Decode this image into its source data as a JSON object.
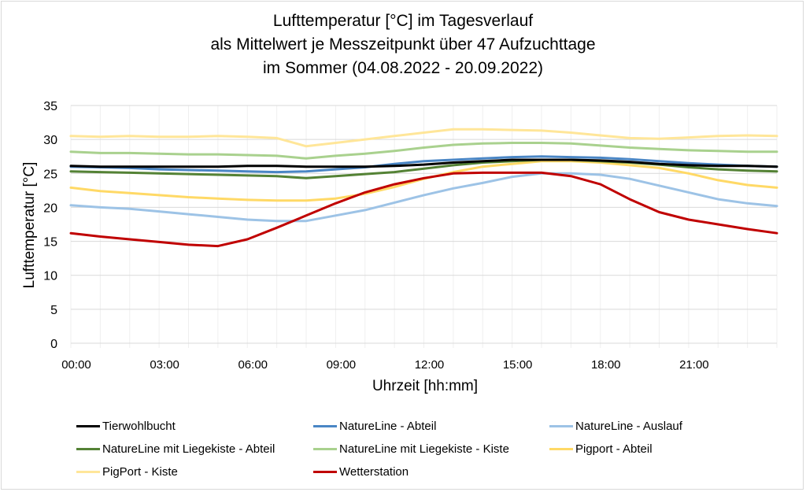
{
  "chart_data": {
    "type": "line",
    "title": [
      "Lufttemperatur [°C] im Tagesverlauf",
      "als Mittelwert je Messzeitpunkt über 47 Aufzuchttage",
      "im Sommer (04.08.2022 - 20.09.2022)"
    ],
    "xlabel": "Uhrzeit [hh:mm]",
    "ylabel": "Lufttemperatur [°C]",
    "ylim": [
      0,
      35
    ],
    "yticks": [
      0,
      5,
      10,
      15,
      20,
      25,
      30,
      35
    ],
    "xlim_hours": [
      0,
      24
    ],
    "xtick_labels": [
      "00:00",
      "03:00",
      "06:00",
      "09:00",
      "12:00",
      "15:00",
      "18:00",
      "21:00"
    ],
    "xtick_hours": [
      0,
      3,
      6,
      9,
      12,
      15,
      18,
      21
    ],
    "grid": "horizontal major, vertical hourly minor",
    "legend_position": "bottom",
    "x_hours": [
      0,
      1,
      2,
      3,
      4,
      5,
      6,
      7,
      8,
      9,
      10,
      11,
      12,
      13,
      14,
      15,
      16,
      17,
      18,
      19,
      20,
      21,
      22,
      23,
      24
    ],
    "series": [
      {
        "name": "Tierwohlbucht",
        "color": "#000000",
        "values": [
          26.1,
          26.0,
          26.0,
          26.0,
          26.0,
          26.0,
          26.1,
          26.1,
          26.0,
          26.0,
          26.0,
          26.1,
          26.3,
          26.6,
          26.8,
          27.0,
          27.0,
          27.0,
          26.9,
          26.7,
          26.4,
          26.2,
          26.1,
          26.1,
          26.0
        ]
      },
      {
        "name": "NatureLine - Abteil",
        "color": "#4a86c5",
        "values": [
          26.0,
          25.9,
          25.8,
          25.6,
          25.5,
          25.4,
          25.3,
          25.2,
          25.3,
          25.6,
          25.9,
          26.4,
          26.8,
          27.0,
          27.2,
          27.4,
          27.5,
          27.4,
          27.3,
          27.1,
          26.8,
          26.5,
          26.3,
          26.1,
          26.0
        ]
      },
      {
        "name": "NatureLine - Auslauf",
        "color": "#9dc3e6",
        "values": [
          20.3,
          20.0,
          19.8,
          19.4,
          19.0,
          18.6,
          18.2,
          18.0,
          18.0,
          18.8,
          19.6,
          20.7,
          21.8,
          22.8,
          23.6,
          24.5,
          25.0,
          25.0,
          24.8,
          24.2,
          23.2,
          22.2,
          21.2,
          20.6,
          20.2
        ]
      },
      {
        "name": "NatureLine mit Liegekiste - Abteil",
        "color": "#548235",
        "values": [
          25.3,
          25.2,
          25.1,
          25.0,
          24.9,
          24.8,
          24.7,
          24.6,
          24.3,
          24.6,
          24.9,
          25.2,
          25.7,
          26.2,
          26.6,
          26.8,
          27.0,
          27.0,
          26.8,
          26.6,
          26.3,
          25.9,
          25.6,
          25.4,
          25.3
        ]
      },
      {
        "name": "NatureLine mit Liegekiste - Kiste",
        "color": "#a9d18e",
        "values": [
          28.2,
          28.0,
          28.0,
          27.9,
          27.8,
          27.8,
          27.7,
          27.6,
          27.2,
          27.6,
          27.9,
          28.3,
          28.8,
          29.2,
          29.4,
          29.5,
          29.5,
          29.4,
          29.1,
          28.8,
          28.6,
          28.4,
          28.3,
          28.2,
          28.2
        ]
      },
      {
        "name": "Pigport - Abteil",
        "color": "#ffd966",
        "values": [
          22.9,
          22.4,
          22.1,
          21.8,
          21.5,
          21.3,
          21.1,
          21.0,
          21.0,
          21.3,
          22.0,
          23.0,
          24.2,
          25.2,
          26.0,
          26.4,
          26.8,
          26.8,
          26.6,
          26.2,
          25.8,
          25.0,
          24.0,
          23.3,
          22.9
        ]
      },
      {
        "name": "PigPort - Kiste",
        "color": "#ffe699",
        "values": [
          30.5,
          30.4,
          30.5,
          30.4,
          30.4,
          30.5,
          30.4,
          30.2,
          29.0,
          29.5,
          30.0,
          30.5,
          31.0,
          31.5,
          31.5,
          31.4,
          31.3,
          31.0,
          30.6,
          30.2,
          30.1,
          30.3,
          30.5,
          30.6,
          30.5
        ]
      },
      {
        "name": "Wetterstation",
        "color": "#c00000",
        "values": [
          16.2,
          15.7,
          15.3,
          14.9,
          14.5,
          14.3,
          15.3,
          17.0,
          18.8,
          20.6,
          22.2,
          23.4,
          24.3,
          25.0,
          25.1,
          25.1,
          25.1,
          24.6,
          23.4,
          21.2,
          19.3,
          18.2,
          17.5,
          16.8,
          16.2
        ]
      }
    ]
  }
}
